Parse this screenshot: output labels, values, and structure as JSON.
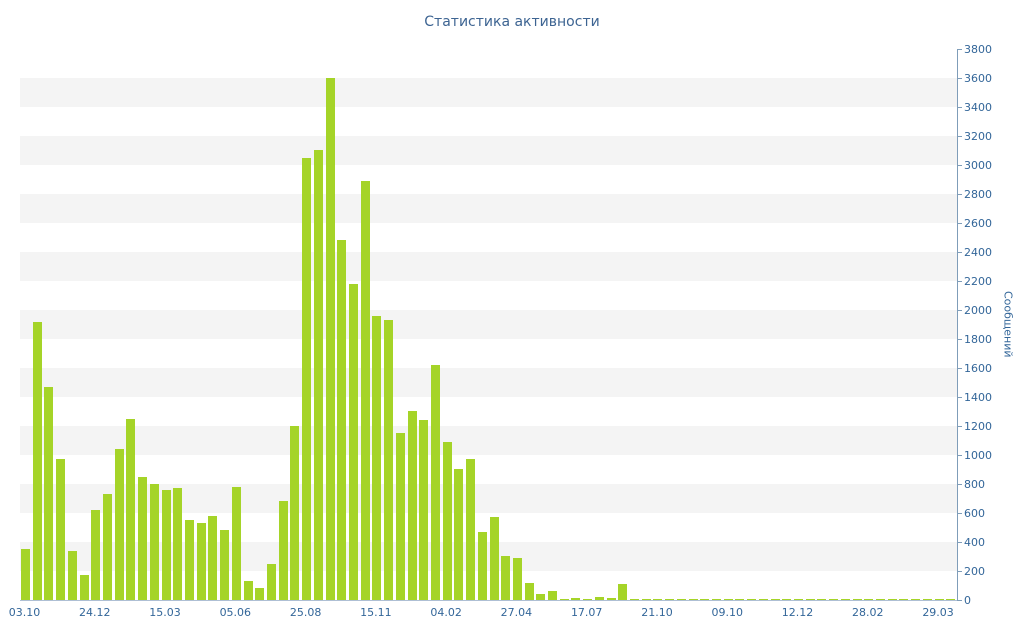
{
  "chart_data": {
    "type": "bar",
    "title": "Статистика активности",
    "xlabel": "",
    "ylabel": "Сообщений",
    "ylim": [
      0,
      3800
    ],
    "y_tick_step": 200,
    "y_ticks": [
      0,
      200,
      400,
      600,
      800,
      1000,
      1200,
      1400,
      1600,
      1800,
      2000,
      2200,
      2400,
      2600,
      2800,
      3000,
      3200,
      3400,
      3600,
      3800
    ],
    "grid": "horizontal-stripes",
    "legend": "none",
    "axis_position": "right",
    "bar_color": "#a5d428",
    "axis_color": "#7f9db9",
    "label_color": "#336699",
    "title_color": "#3d6492",
    "stripe_color": "#f4f4f4",
    "x_tick_labels": [
      "03.10",
      "24.12",
      "15.03",
      "05.06",
      "25.08",
      "15.11",
      "04.02",
      "27.04",
      "17.07",
      "21.10",
      "09.10",
      "12.12",
      "28.02",
      "29.03"
    ],
    "x_tick_every": 6,
    "values": [
      350,
      1920,
      1470,
      970,
      340,
      170,
      620,
      730,
      1040,
      1250,
      850,
      800,
      760,
      770,
      550,
      530,
      580,
      480,
      780,
      130,
      80,
      250,
      680,
      1200,
      3050,
      3100,
      3600,
      2480,
      2180,
      2890,
      1960,
      1930,
      1150,
      1300,
      1240,
      1620,
      1090,
      900,
      970,
      470,
      570,
      300,
      290,
      120,
      40,
      60,
      10,
      15,
      10,
      20,
      15,
      110,
      10,
      5,
      8,
      5,
      10,
      5,
      8,
      5,
      10,
      5,
      5,
      8,
      5,
      10,
      5,
      5,
      8,
      5,
      5,
      10,
      5,
      5,
      8,
      5,
      5,
      5,
      8,
      5
    ]
  }
}
